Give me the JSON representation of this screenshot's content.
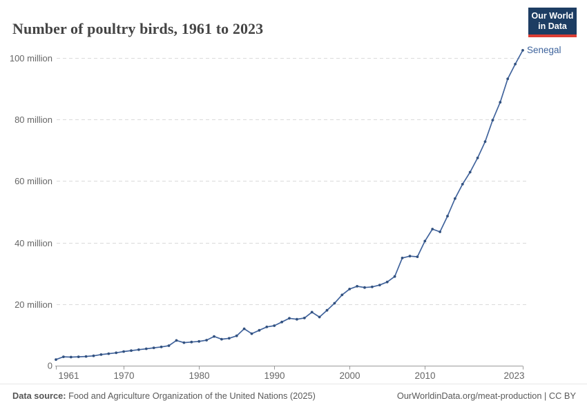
{
  "header": {
    "title": "Number of poultry birds, 1961 to 2023"
  },
  "logo": {
    "line1": "Our World",
    "line2": "in Data"
  },
  "footer": {
    "source_label": "Data source:",
    "source_text": " Food and Agriculture Organization of the United Nations (2025)",
    "attribution": "OurWorldinData.org/meat-production | CC BY"
  },
  "colors": {
    "line": "#40639c",
    "marker": "#32517f",
    "entity": "#3d639c",
    "grid": "#dadada",
    "axis": "#999999",
    "tick_text": "#666666",
    "title_text": "#444444",
    "logo_bg": "#1d3d63",
    "logo_red": "#dc3e34"
  },
  "chart_data": {
    "type": "line",
    "title": "Number of poultry birds, 1961 to 2023",
    "entity": "Senegal",
    "unit": "million birds",
    "grid": "horizontal-dashed",
    "legend_position": "end-of-line-label",
    "xlim": [
      1961,
      2023
    ],
    "ylim": [
      0,
      100
    ],
    "x_ticks": [
      1961,
      1970,
      1980,
      1990,
      2000,
      2010,
      2023
    ],
    "y_ticks": [
      {
        "v": 0,
        "label": "0"
      },
      {
        "v": 20,
        "label": "20 million"
      },
      {
        "v": 40,
        "label": "40 million"
      },
      {
        "v": 60,
        "label": "60 million"
      },
      {
        "v": 80,
        "label": "80 million"
      },
      {
        "v": 100,
        "label": "100 million"
      }
    ],
    "x": [
      1961,
      1962,
      1963,
      1964,
      1965,
      1966,
      1967,
      1968,
      1969,
      1970,
      1971,
      1972,
      1973,
      1974,
      1975,
      1976,
      1977,
      1978,
      1979,
      1980,
      1981,
      1982,
      1983,
      1984,
      1985,
      1986,
      1987,
      1988,
      1989,
      1990,
      1991,
      1992,
      1993,
      1994,
      1995,
      1996,
      1997,
      1998,
      1999,
      2000,
      2001,
      2002,
      2003,
      2004,
      2005,
      2006,
      2007,
      2008,
      2009,
      2010,
      2011,
      2012,
      2013,
      2014,
      2015,
      2016,
      2017,
      2018,
      2019,
      2020,
      2021,
      2022,
      2023
    ],
    "values": [
      2.0,
      2.9,
      2.8,
      2.9,
      3.0,
      3.2,
      3.6,
      3.9,
      4.2,
      4.6,
      4.9,
      5.2,
      5.5,
      5.8,
      6.1,
      6.5,
      8.2,
      7.5,
      7.7,
      7.9,
      8.3,
      9.5,
      8.6,
      8.9,
      9.7,
      12.0,
      10.4,
      11.5,
      12.6,
      13.0,
      14.2,
      15.4,
      15.1,
      15.5,
      17.4,
      15.8,
      18.0,
      20.3,
      23.0,
      24.9,
      25.8,
      25.4,
      25.6,
      26.2,
      27.2,
      29.0,
      35.0,
      35.6,
      35.4,
      40.5,
      44.4,
      43.5,
      48.6,
      54.3,
      59.0,
      62.9,
      67.5,
      72.8,
      79.8,
      85.6,
      93.2,
      98.0,
      102.5
    ]
  }
}
